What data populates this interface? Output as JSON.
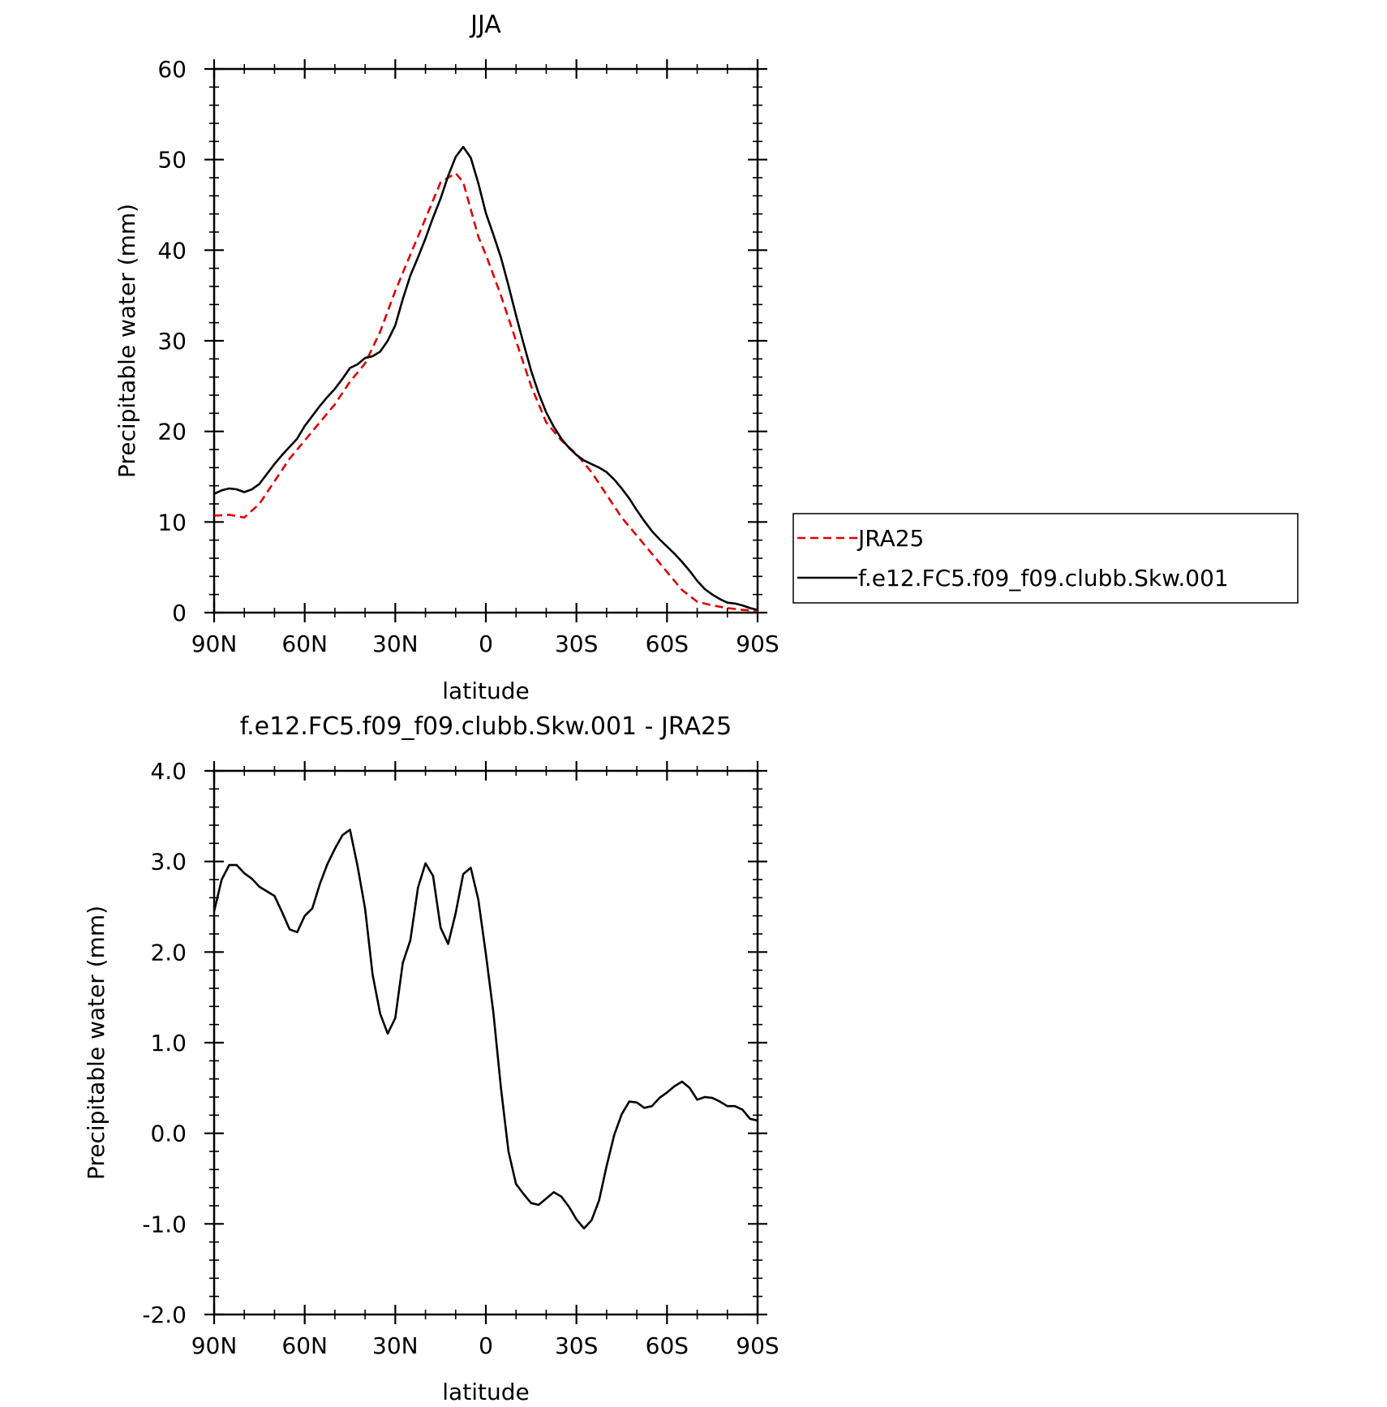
{
  "chart_data": [
    {
      "type": "line",
      "title": "JJA",
      "xlabel": "latitude",
      "ylabel": "Precipitable water (mm)",
      "xlim": [
        90,
        -90
      ],
      "ylim": [
        0,
        60
      ],
      "x_ticks": [
        90,
        60,
        30,
        0,
        -30,
        -60,
        -90
      ],
      "x_tick_labels": [
        "90N",
        "60N",
        "30N",
        "0",
        "30S",
        "60S",
        "90S"
      ],
      "y_ticks": [
        0,
        10,
        20,
        30,
        40,
        50,
        60
      ],
      "y_tick_labels": [
        "0",
        "10",
        "20",
        "30",
        "40",
        "50",
        "60"
      ],
      "legend_position": "right",
      "series": [
        {
          "name": "JRA25",
          "color": "#e00000",
          "dash": "dashed",
          "x": [
            90,
            85,
            80,
            75,
            70,
            65,
            60,
            55,
            50,
            45,
            40,
            35,
            30,
            25,
            20,
            15,
            10,
            7.5,
            5,
            2.5,
            0,
            -5,
            -10,
            -15,
            -20,
            -25,
            -30,
            -35,
            -40,
            -45,
            -50,
            -55,
            -60,
            -65,
            -70,
            -75,
            -80,
            -85,
            -90
          ],
          "values": [
            10.7,
            10.8,
            10.5,
            12,
            14.5,
            17,
            19,
            21,
            23,
            25.5,
            27.5,
            31,
            35.5,
            39.5,
            43.5,
            47.5,
            48.5,
            47.5,
            44.5,
            41.5,
            39.5,
            35,
            30,
            25,
            21,
            19,
            17.5,
            15.5,
            13,
            10.5,
            8.5,
            6.5,
            4.5,
            2.5,
            1.2,
            0.8,
            0.5,
            0.3,
            0.2
          ]
        },
        {
          "name": "f.e12.FC5.f09_f09.clubb.Skw.001",
          "color": "#000000",
          "dash": "solid",
          "x": [
            90,
            87.5,
            85,
            82.5,
            80,
            77.5,
            75,
            72.5,
            70,
            67.5,
            65,
            62.5,
            60,
            57.5,
            55,
            52.5,
            50,
            47.5,
            45,
            42.5,
            40,
            37.5,
            35,
            32.5,
            30,
            27.5,
            25,
            22.5,
            20,
            17.5,
            15,
            12.5,
            10,
            7.5,
            5,
            2.5,
            0,
            -2.5,
            -5,
            -7.5,
            -10,
            -12.5,
            -15,
            -17.5,
            -20,
            -22.5,
            -25,
            -27.5,
            -30,
            -32.5,
            -35,
            -37.5,
            -40,
            -42.5,
            -45,
            -47.5,
            -50,
            -52.5,
            -55,
            -57.5,
            -60,
            -62.5,
            -65,
            -67.5,
            -70,
            -72.5,
            -75,
            -77.5,
            -80,
            -82.5,
            -85,
            -87.5,
            -90
          ],
          "values": [
            13.1,
            13.5,
            13.7,
            13.6,
            13.3,
            13.6,
            14.2,
            15.3,
            16.4,
            17.4,
            18.3,
            19.2,
            20.6,
            21.7,
            22.8,
            23.8,
            24.7,
            25.8,
            27.0,
            27.4,
            28.1,
            28.3,
            28.8,
            30.0,
            31.7,
            34.6,
            37.2,
            39.2,
            41.3,
            43.6,
            45.7,
            48.2,
            50.3,
            51.4,
            50.2,
            47.4,
            44.1,
            41.7,
            39.2,
            36.1,
            32.8,
            29.7,
            26.7,
            24.2,
            22.1,
            20.5,
            19.2,
            18.2,
            17.4,
            16.8,
            16.4,
            16.0,
            15.5,
            14.7,
            13.7,
            12.6,
            11.3,
            10.1,
            9.0,
            8.1,
            7.3,
            6.5,
            5.6,
            4.6,
            3.5,
            2.6,
            2.0,
            1.5,
            1.1,
            1.0,
            0.8,
            0.5,
            0.3
          ]
        }
      ]
    },
    {
      "type": "line",
      "title": "f.e12.FC5.f09_f09.clubb.Skw.001 - JRA25",
      "xlabel": "latitude",
      "ylabel": "Precipitable water (mm)",
      "xlim": [
        90,
        -90
      ],
      "ylim": [
        -2,
        4
      ],
      "x_ticks": [
        90,
        60,
        30,
        0,
        -30,
        -60,
        -90
      ],
      "x_tick_labels": [
        "90N",
        "60N",
        "30N",
        "0",
        "30S",
        "60S",
        "90S"
      ],
      "y_ticks": [
        -2,
        -1,
        0,
        1,
        2,
        3,
        4
      ],
      "y_tick_labels": [
        "-2.0",
        "-1.0",
        "0.0",
        "1.0",
        "2.0",
        "3.0",
        "4.0"
      ],
      "series": [
        {
          "color": "#000000",
          "dash": "solid",
          "x": [
            90,
            87.5,
            85,
            82.5,
            80,
            77.5,
            75,
            72.5,
            70,
            67.5,
            65,
            62.5,
            60,
            57.5,
            55,
            52.5,
            50,
            47.5,
            45,
            42.5,
            40,
            37.5,
            35,
            32.5,
            30,
            27.5,
            25,
            22.5,
            20,
            17.5,
            15,
            12.5,
            10,
            7.5,
            5,
            2.5,
            0,
            -2.5,
            -5,
            -7.5,
            -10,
            -12.5,
            -15,
            -17.5,
            -20,
            -22.5,
            -25,
            -27.5,
            -30,
            -32.5,
            -35,
            -37.5,
            -40,
            -42.5,
            -45,
            -47.5,
            -50,
            -52.5,
            -55,
            -57.5,
            -60,
            -62.5,
            -65,
            -67.5,
            -70,
            -72.5,
            -75,
            -77.5,
            -80,
            -82.5,
            -85,
            -87.5,
            -90
          ],
          "values": [
            2.45,
            2.8,
            2.96,
            2.96,
            2.87,
            2.81,
            2.72,
            2.67,
            2.62,
            2.44,
            2.25,
            2.22,
            2.4,
            2.48,
            2.75,
            2.97,
            3.14,
            3.29,
            3.35,
            2.95,
            2.48,
            1.75,
            1.32,
            1.1,
            1.27,
            1.88,
            2.13,
            2.71,
            2.98,
            2.84,
            2.27,
            2.09,
            2.43,
            2.86,
            2.93,
            2.58,
            1.98,
            1.33,
            0.5,
            -0.2,
            -0.56,
            -0.67,
            -0.77,
            -0.79,
            -0.72,
            -0.65,
            -0.7,
            -0.81,
            -0.95,
            -1.05,
            -0.96,
            -0.74,
            -0.36,
            -0.02,
            0.21,
            0.35,
            0.34,
            0.28,
            0.3,
            0.39,
            0.45,
            0.52,
            0.57,
            0.5,
            0.37,
            0.4,
            0.39,
            0.35,
            0.3,
            0.3,
            0.26,
            0.16,
            0.14
          ]
        }
      ]
    }
  ]
}
